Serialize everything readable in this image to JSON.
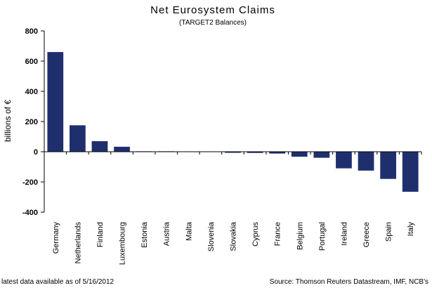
{
  "chart_data": {
    "type": "bar",
    "title": "Net Eurosystem Claims",
    "subtitle": "(TARGET2 Balances)",
    "xlabel": "",
    "ylabel": "billions of €",
    "ylim": [
      -400,
      800
    ],
    "yticks": [
      800,
      600,
      400,
      200,
      0,
      -200,
      -400
    ],
    "grid": false,
    "legend": "none",
    "bar_color": "#1f2f6e",
    "categories": [
      "Germany",
      "Netherlands",
      "Finland",
      "Luxembourg",
      "Estonia",
      "Austria",
      "Malta",
      "Slovenia",
      "Slovakia",
      "Cyprus",
      "France",
      "Belgium",
      "Portugal",
      "Ireland",
      "Greece",
      "Spain",
      "Italy"
    ],
    "values": [
      660,
      175,
      70,
      33,
      3,
      3,
      0,
      0,
      -7,
      -8,
      -12,
      -33,
      -40,
      -110,
      -125,
      -180,
      -265
    ]
  },
  "footer": {
    "left": "latest data available as of 5/16/2012",
    "right": "Source: Thomson Reuters Datastream, IMF, NCB's"
  }
}
